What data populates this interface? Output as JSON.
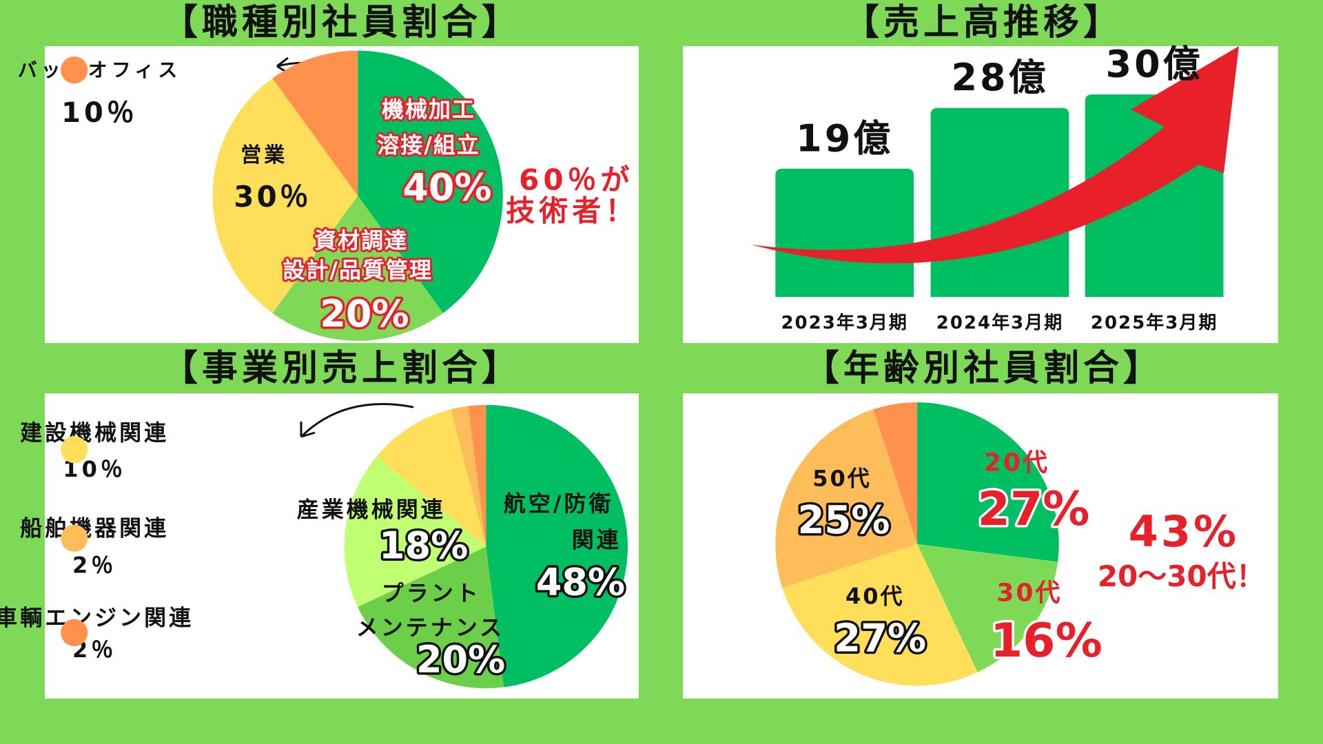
{
  "chart_data": [
    {
      "type": "pie",
      "title": "【職種別社員割合】",
      "categories": [
        [
          "機械加工",
          "溶接/組立"
        ],
        [
          "資材調達",
          "設計/品質管理"
        ],
        [
          "営業"
        ],
        [
          "バックオフィス"
        ]
      ],
      "values": [
        40,
        20,
        30,
        10
      ],
      "value_labels": [
        "40%",
        "20%",
        "30％",
        "10％"
      ],
      "colors": [
        "#00bf63",
        "#7ed957",
        "#ffde59",
        "#ff914d"
      ],
      "annotation": [
        "60％が",
        "技術者！"
      ]
    },
    {
      "type": "bar",
      "title": "【売上高推移】",
      "categories": [
        "2023年3月期",
        "2024年3月期",
        "2025年3月期"
      ],
      "values": [
        19,
        28,
        30
      ],
      "value_labels": [
        "19億",
        "28億",
        "30億"
      ],
      "color": "#00bf63",
      "ylim": [
        0,
        36
      ]
    },
    {
      "type": "pie",
      "title": "【事業別売上割合】",
      "categories": [
        [
          "航空/防衛",
          "関連"
        ],
        [
          "プラント",
          "メンテナンス"
        ],
        [
          "産業機械関連"
        ],
        [
          "建設機械関連"
        ],
        [
          "船舶機器関連"
        ],
        [
          "車輌エンジン関連"
        ]
      ],
      "values": [
        48,
        20,
        18,
        10,
        2,
        2
      ],
      "value_labels": [
        "48%",
        "20%",
        "18%",
        "10％",
        "2％",
        "2％"
      ],
      "colors": [
        "#00bf63",
        "#6ccf4a",
        "#c1ff72",
        "#ffde59",
        "#ffbd59",
        "#ff914d"
      ]
    },
    {
      "type": "pie",
      "title": "【年齢別社員割合】",
      "categories": [
        [
          "20代"
        ],
        [
          "30代"
        ],
        [
          "40代"
        ],
        [
          "50代"
        ],
        null
      ],
      "values": [
        27,
        16,
        27,
        25,
        5
      ],
      "value_labels": [
        "27%",
        "16%",
        "27%",
        "25%",
        null
      ],
      "colors": [
        "#00bf63",
        "#7ed957",
        "#ffde59",
        "#ffbd59",
        "#ff914d"
      ],
      "annotation": [
        "43%",
        "20〜30代！"
      ]
    }
  ]
}
